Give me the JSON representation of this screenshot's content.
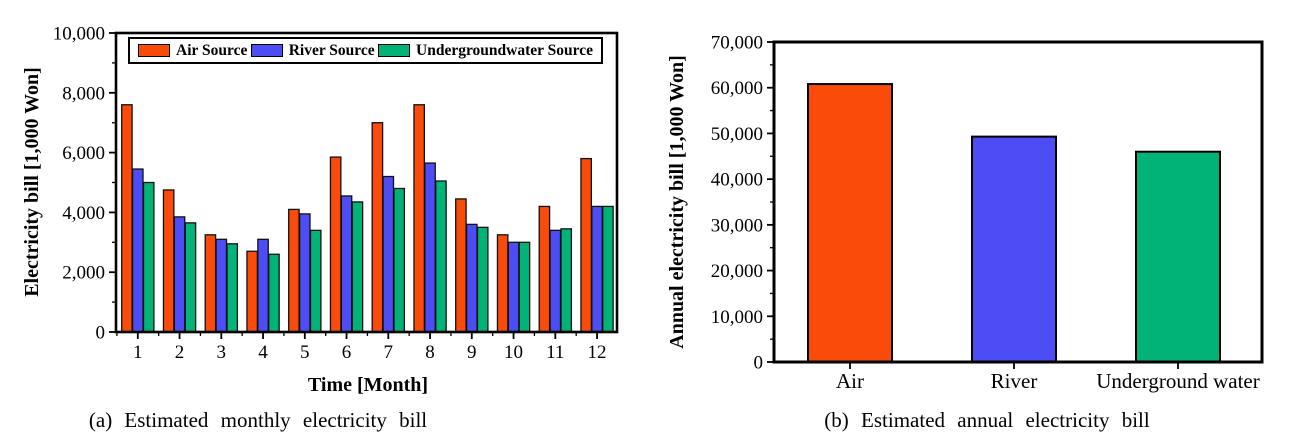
{
  "colors": {
    "air": "#FA4B0A",
    "river": "#4D4DF5",
    "underground": "#01B377",
    "bar_edge": "#111111",
    "axis": "#000000",
    "background": "#FFFFFF"
  },
  "chart_data": [
    {
      "type": "bar",
      "caption": "(a) Estimated monthly electricity bill",
      "xlabel": "Time [Month]",
      "ylabel": "Electricity bill [1,000 Won]",
      "categories": [
        "1",
        "2",
        "3",
        "4",
        "5",
        "6",
        "7",
        "8",
        "9",
        "10",
        "11",
        "12"
      ],
      "series": [
        {
          "name": "Air Source",
          "color": "#FA4B0A",
          "values": [
            7600,
            4750,
            3250,
            2700,
            4100,
            5850,
            7000,
            7600,
            4450,
            3250,
            4200,
            5800
          ]
        },
        {
          "name": "River Source",
          "color": "#4D4DF5",
          "values": [
            5450,
            3850,
            3100,
            3100,
            3950,
            4550,
            5200,
            5650,
            3600,
            3000,
            3400,
            4200
          ]
        },
        {
          "name": "Undergroundwater Source",
          "color": "#01B377",
          "values": [
            5000,
            3650,
            2950,
            2600,
            3400,
            4350,
            4800,
            5050,
            3500,
            3000,
            3450,
            4200
          ]
        }
      ],
      "ylim": [
        0,
        10000
      ],
      "ytick_step": 2000,
      "ytick_minor_step": 1000,
      "ytick_labels": [
        "0",
        "2,000",
        "4,000",
        "6,000",
        "8,000",
        "10,000"
      ],
      "legend_position": "top-inside",
      "grid": false
    },
    {
      "type": "bar",
      "caption": "(b) Estimated annual electricity bill",
      "xlabel": "",
      "ylabel": "Annual electricity bill [1,000 Won]",
      "categories": [
        "Air",
        "River",
        "Underground water"
      ],
      "series": [
        {
          "name": "Annual electricity bill",
          "values": [
            60800,
            49300,
            46000
          ],
          "bar_colors": [
            "#FA4B0A",
            "#4D4DF5",
            "#01B377"
          ]
        }
      ],
      "ylim": [
        0,
        70000
      ],
      "ytick_step": 10000,
      "ytick_minor_step": 5000,
      "ytick_labels": [
        "0",
        "10,000",
        "20,000",
        "30,000",
        "40,000",
        "50,000",
        "60,000",
        "70,000"
      ],
      "legend_position": "none",
      "grid": false
    }
  ]
}
